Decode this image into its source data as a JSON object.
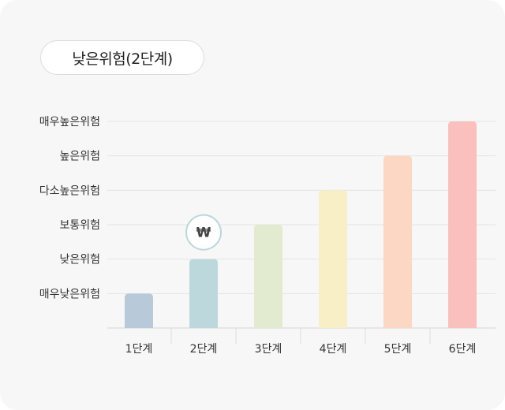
{
  "chart_data": {
    "type": "bar",
    "title": "낮은위험(2단계)",
    "categories": [
      "1단계",
      "2단계",
      "3단계",
      "4단계",
      "5단계",
      "6단계"
    ],
    "y_levels": [
      "매우낮은위험",
      "낮은위험",
      "보통위험",
      "다소높은위험",
      "높은위험",
      "매우높은위험"
    ],
    "values": [
      1,
      2,
      3,
      4,
      5,
      6
    ],
    "ylim": [
      0,
      6
    ],
    "grid": true,
    "colors": [
      "#b8cad9",
      "#bcd8dc",
      "#e2ebd0",
      "#f8efc6",
      "#fbd7c4",
      "#f9c0bd"
    ],
    "highlight": {
      "category": "2단계",
      "marker_symbol": "₩"
    }
  }
}
